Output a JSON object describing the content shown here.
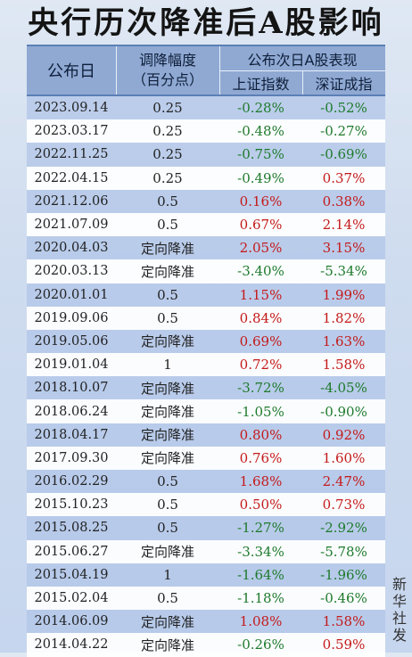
{
  "title": "央行历次降准后A股影响",
  "header": {
    "date": "公布日",
    "rate_line1": "调降幅度",
    "rate_line2": "（百分点）",
    "performance": "公布次日A股表现",
    "shanghai": "上证指数",
    "shenzhen": "深证成指"
  },
  "rows": [
    {
      "date": "2023.09.14",
      "rate": "0.25",
      "sh": "-0.28%",
      "sz": "-0.52%"
    },
    {
      "date": "2023.03.17",
      "rate": "0.25",
      "sh": "-0.48%",
      "sz": "-0.27%"
    },
    {
      "date": "2022.11.25",
      "rate": "0.25",
      "sh": "-0.75%",
      "sz": "-0.69%"
    },
    {
      "date": "2022.04.15",
      "rate": "0.25",
      "sh": "-0.49%",
      "sz": "0.37%"
    },
    {
      "date": "2021.12.06",
      "rate": "0.5",
      "sh": "0.16%",
      "sz": "0.38%"
    },
    {
      "date": "2021.07.09",
      "rate": "0.5",
      "sh": "0.67%",
      "sz": "2.14%"
    },
    {
      "date": "2020.04.03",
      "rate": "定向降准",
      "sh": "2.05%",
      "sz": "3.15%"
    },
    {
      "date": "2020.03.13",
      "rate": "定向降准",
      "sh": "-3.40%",
      "sz": "-5.34%"
    },
    {
      "date": "2020.01.01",
      "rate": "0.5",
      "sh": "1.15%",
      "sz": "1.99%"
    },
    {
      "date": "2019.09.06",
      "rate": "0.5",
      "sh": "0.84%",
      "sz": "1.82%"
    },
    {
      "date": "2019.05.06",
      "rate": "定向降准",
      "sh": "0.69%",
      "sz": "1.63%"
    },
    {
      "date": "2019.01.04",
      "rate": "1",
      "sh": "0.72%",
      "sz": "1.58%"
    },
    {
      "date": "2018.10.07",
      "rate": "定向降准",
      "sh": "-3.72%",
      "sz": "-4.05%"
    },
    {
      "date": "2018.06.24",
      "rate": "定向降准",
      "sh": "-1.05%",
      "sz": "-0.90%"
    },
    {
      "date": "2018.04.17",
      "rate": "定向降准",
      "sh": "0.80%",
      "sz": "0.92%"
    },
    {
      "date": "2017.09.30",
      "rate": "定向降准",
      "sh": "0.76%",
      "sz": "1.60%"
    },
    {
      "date": "2016.02.29",
      "rate": "0.5",
      "sh": "1.68%",
      "sz": "2.47%"
    },
    {
      "date": "2015.10.23",
      "rate": "0.5",
      "sh": "0.50%",
      "sz": "0.73%"
    },
    {
      "date": "2015.08.25",
      "rate": "0.5",
      "sh": "-1.27%",
      "sz": "-2.92%"
    },
    {
      "date": "2015.06.27",
      "rate": "定向降准",
      "sh": "-3.34%",
      "sz": "-5.78%"
    },
    {
      "date": "2015.04.19",
      "rate": "1",
      "sh": "-1.64%",
      "sz": "-1.96%"
    },
    {
      "date": "2015.02.04",
      "rate": "0.5",
      "sh": "-1.18%",
      "sz": "-0.46%"
    },
    {
      "date": "2014.06.09",
      "rate": "定向降准",
      "sh": "1.08%",
      "sz": "1.58%"
    },
    {
      "date": "2014.04.22",
      "rate": "定向降准",
      "sh": "-0.26%",
      "sz": "0.59%"
    }
  ],
  "source": "新华社发",
  "colors": {
    "negative": "#1e7a2c",
    "positive": "#c41a1a",
    "header_bg": "#8fa9d3",
    "alt_row_bg": "#b2c6e8"
  }
}
